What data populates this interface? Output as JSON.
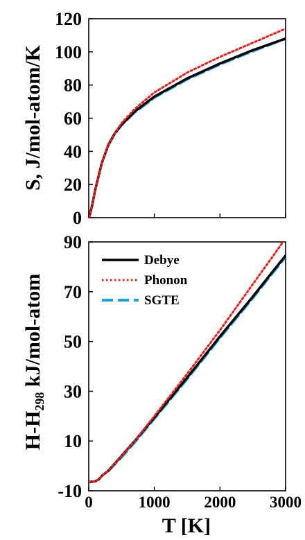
{
  "chart_data": [
    {
      "type": "line",
      "ylabel": "S, J/mol-atom/K",
      "xlabel": "",
      "xlim": [
        0,
        3000
      ],
      "ylim": [
        0,
        120
      ],
      "xticks": [
        0,
        1000,
        2000,
        3000
      ],
      "yticks": [
        0,
        20,
        40,
        60,
        80,
        100,
        120
      ],
      "ytick_labels": [
        "0",
        "20",
        "40",
        "60",
        "80",
        "100",
        "120"
      ],
      "series": [
        {
          "name": "Debye",
          "color": "#000000",
          "style": "solid",
          "x": [
            10,
            50,
            100,
            200,
            300,
            400,
            500,
            700,
            1000,
            1500,
            2000,
            2500,
            3000
          ],
          "y": [
            0.5,
            7,
            17,
            33,
            44,
            51,
            56,
            64,
            73,
            84,
            93,
            101,
            108
          ]
        },
        {
          "name": "Phonon",
          "color": "#e8201e",
          "style": "dotted",
          "x": [
            10,
            50,
            100,
            200,
            300,
            400,
            500,
            700,
            1000,
            1500,
            2000,
            2500,
            3000
          ],
          "y": [
            0.5,
            7,
            17,
            33,
            44,
            51,
            57,
            65.5,
            75.5,
            87.5,
            97,
            105.5,
            114
          ]
        },
        {
          "name": "SGTE",
          "color": "#1aa3e0",
          "style": "dashed",
          "x": [
            300,
            400,
            500,
            700,
            1000,
            1500,
            2000,
            2500,
            3000
          ],
          "y": [
            44,
            51,
            56,
            63.5,
            72.5,
            83.5,
            92.5,
            100.5,
            108
          ]
        }
      ]
    },
    {
      "type": "line",
      "ylabel": "H-H₂₉₈ kJ/mol-atom",
      "xlabel": "T [K]",
      "xlim": [
        0,
        3000
      ],
      "ylim": [
        -10,
        90
      ],
      "xticks": [
        0,
        1000,
        2000,
        3000
      ],
      "xtick_labels": [
        "0",
        "1000",
        "2000",
        "3000"
      ],
      "yticks": [
        -10,
        10,
        30,
        50,
        70,
        90
      ],
      "ytick_labels": [
        "-10",
        "10",
        "30",
        "50",
        "70",
        "90"
      ],
      "legend": {
        "position": "top-left",
        "entries": [
          "Debye",
          "Phonon",
          "SGTE"
        ]
      },
      "series": [
        {
          "name": "Debye",
          "color": "#000000",
          "style": "solid",
          "x": [
            0,
            100,
            150,
            200,
            298,
            500,
            700,
            1000,
            1500,
            2000,
            2500,
            2800,
            3000
          ],
          "y": [
            -6.5,
            -6.2,
            -5.5,
            -4,
            -2,
            4,
            10,
            19.5,
            35.5,
            52,
            68,
            78,
            84.5
          ]
        },
        {
          "name": "Phonon",
          "color": "#e8201e",
          "style": "dotted",
          "x": [
            0,
            100,
            150,
            200,
            298,
            500,
            700,
            1000,
            1500,
            2000,
            2500,
            2800,
            3000
          ],
          "y": [
            -6.5,
            -6.2,
            -5.5,
            -4,
            -2,
            4,
            10,
            20,
            37,
            54.5,
            73,
            84,
            91.5
          ]
        },
        {
          "name": "SGTE",
          "color": "#1aa3e0",
          "style": "dashed",
          "x": [
            298,
            500,
            700,
            1000,
            1500,
            2000,
            2500,
            2800,
            3000
          ],
          "y": [
            -2,
            3.5,
            9.5,
            19,
            35,
            51.5,
            67.5,
            77.5,
            84
          ]
        }
      ]
    }
  ]
}
